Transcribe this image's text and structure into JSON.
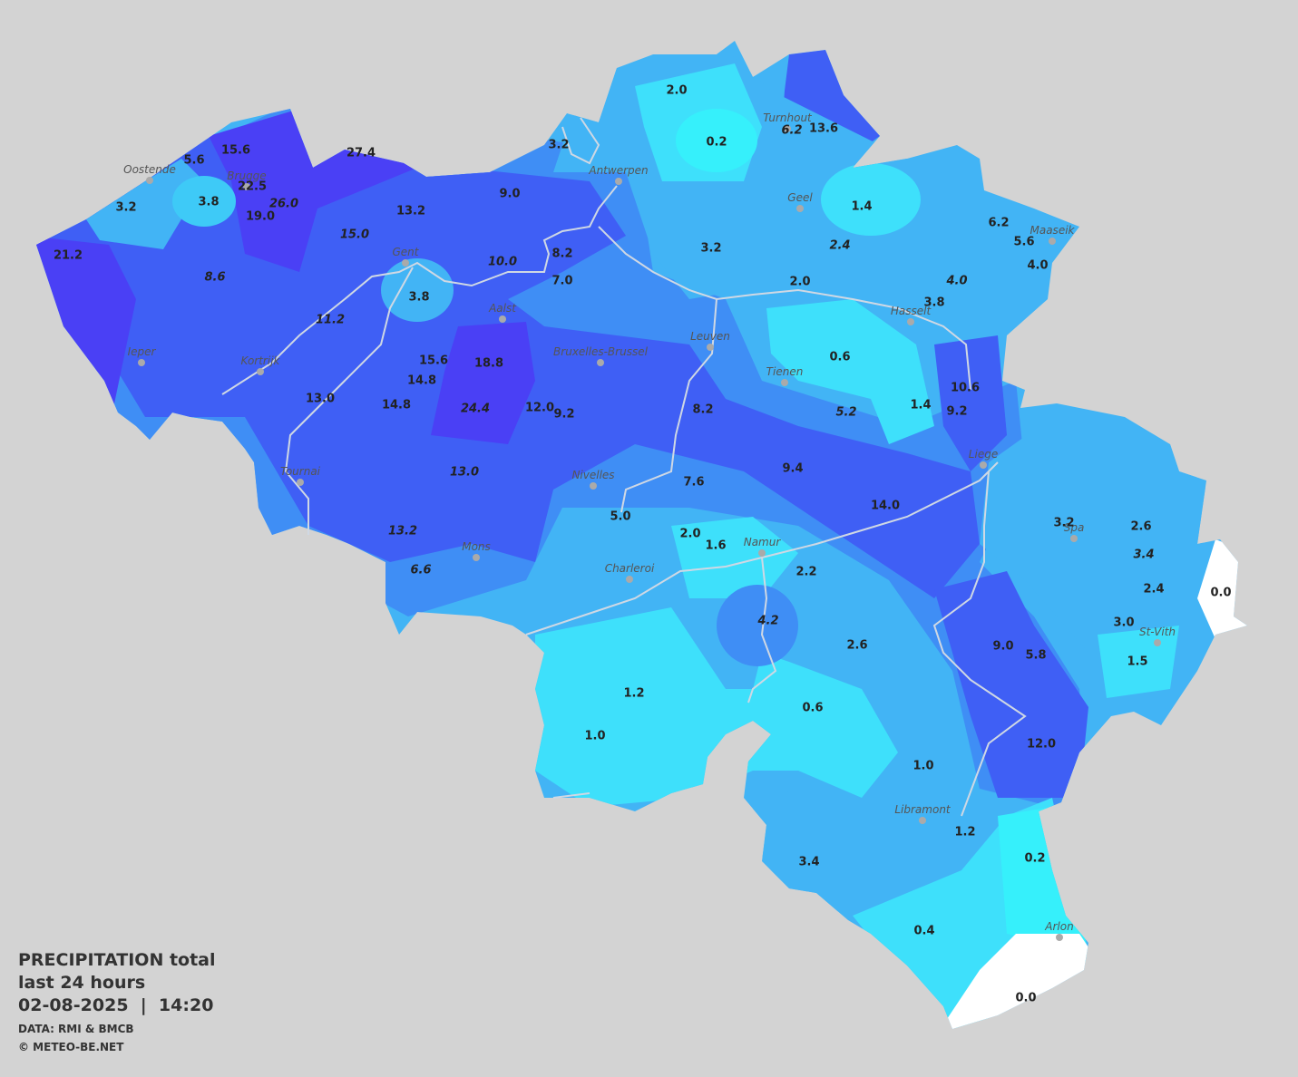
{
  "legend": {
    "title": "PRECIPITATION total",
    "period": "last 24 hours",
    "datetime": "02-08-2025  |  14:20",
    "source": "DATA: RMI & BMCB",
    "copyright": "© METEO-BE.NET"
  },
  "cities": [
    "Oostende",
    "Brugge",
    "Gent",
    "Antwerpen",
    "Turnhout",
    "Geel",
    "Maaseik",
    "Hasselt",
    "Leuven",
    "Tienen",
    "Aalst",
    "Bruxelles-Brussel",
    "Ieper",
    "Kortrijk",
    "Tournai",
    "Nivelles",
    "Liege",
    "Spa",
    "Namur",
    "Charleroi",
    "Mons",
    "St-Vith",
    "Libramont",
    "Arlon"
  ],
  "stations": [
    {
      "value": "2.0",
      "italic": false
    },
    {
      "value": "0.2",
      "italic": false
    },
    {
      "value": "3.2",
      "italic": false
    },
    {
      "value": "6.2",
      "italic": true
    },
    {
      "value": "13.6",
      "italic": false
    },
    {
      "value": "15.6",
      "italic": false
    },
    {
      "value": "5.6",
      "italic": false
    },
    {
      "value": "27.4",
      "italic": false
    },
    {
      "value": "22.5",
      "italic": false
    },
    {
      "value": "26.0",
      "italic": true
    },
    {
      "value": "19.0",
      "italic": false
    },
    {
      "value": "3.2",
      "italic": false
    },
    {
      "value": "3.8",
      "italic": false
    },
    {
      "value": "9.0",
      "italic": false
    },
    {
      "value": "13.2",
      "italic": false
    },
    {
      "value": "15.0",
      "italic": true
    },
    {
      "value": "1.4",
      "italic": false
    },
    {
      "value": "6.2",
      "italic": false
    },
    {
      "value": "5.6",
      "italic": false
    },
    {
      "value": "4.0",
      "italic": false
    },
    {
      "value": "3.2",
      "italic": false
    },
    {
      "value": "2.4",
      "italic": true
    },
    {
      "value": "21.2",
      "italic": false
    },
    {
      "value": "8.6",
      "italic": true
    },
    {
      "value": "10.0",
      "italic": true
    },
    {
      "value": "8.2",
      "italic": false
    },
    {
      "value": "7.0",
      "italic": false
    },
    {
      "value": "2.0",
      "italic": false
    },
    {
      "value": "4.0",
      "italic": true
    },
    {
      "value": "3.8",
      "italic": false
    },
    {
      "value": "3.8",
      "italic": false
    },
    {
      "value": "11.2",
      "italic": true
    },
    {
      "value": "0.6",
      "italic": false
    },
    {
      "value": "18.8",
      "italic": false
    },
    {
      "value": "15.6",
      "italic": false
    },
    {
      "value": "14.8",
      "italic": false
    },
    {
      "value": "10.6",
      "italic": false
    },
    {
      "value": "13.0",
      "italic": false
    },
    {
      "value": "14.8",
      "italic": false
    },
    {
      "value": "24.4",
      "italic": true
    },
    {
      "value": "12.0",
      "italic": false
    },
    {
      "value": "9.2",
      "italic": false
    },
    {
      "value": "8.2",
      "italic": false
    },
    {
      "value": "5.2",
      "italic": true
    },
    {
      "value": "1.4",
      "italic": false
    },
    {
      "value": "9.2",
      "italic": false
    },
    {
      "value": "13.0",
      "italic": true
    },
    {
      "value": "9.4",
      "italic": false
    },
    {
      "value": "7.6",
      "italic": false
    },
    {
      "value": "14.0",
      "italic": false
    },
    {
      "value": "5.0",
      "italic": false
    },
    {
      "value": "3.2",
      "italic": false
    },
    {
      "value": "2.6",
      "italic": false
    },
    {
      "value": "13.2",
      "italic": true
    },
    {
      "value": "2.0",
      "italic": false
    },
    {
      "value": "1.6",
      "italic": false
    },
    {
      "value": "3.4",
      "italic": true
    },
    {
      "value": "2.2",
      "italic": false
    },
    {
      "value": "6.6",
      "italic": true
    },
    {
      "value": "2.4",
      "italic": false
    },
    {
      "value": "0.0",
      "italic": false
    },
    {
      "value": "3.0",
      "italic": false
    },
    {
      "value": "4.2",
      "italic": true
    },
    {
      "value": "2.6",
      "italic": false
    },
    {
      "value": "9.0",
      "italic": false
    },
    {
      "value": "5.8",
      "italic": false
    },
    {
      "value": "1.5",
      "italic": false
    },
    {
      "value": "1.2",
      "italic": false
    },
    {
      "value": "0.6",
      "italic": false
    },
    {
      "value": "1.0",
      "italic": false
    },
    {
      "value": "12.0",
      "italic": false
    },
    {
      "value": "1.0",
      "italic": false
    },
    {
      "value": "1.2",
      "italic": false
    },
    {
      "value": "0.2",
      "italic": false
    },
    {
      "value": "3.4",
      "italic": false
    },
    {
      "value": "0.4",
      "italic": false
    },
    {
      "value": "0.0",
      "italic": false
    }
  ]
}
